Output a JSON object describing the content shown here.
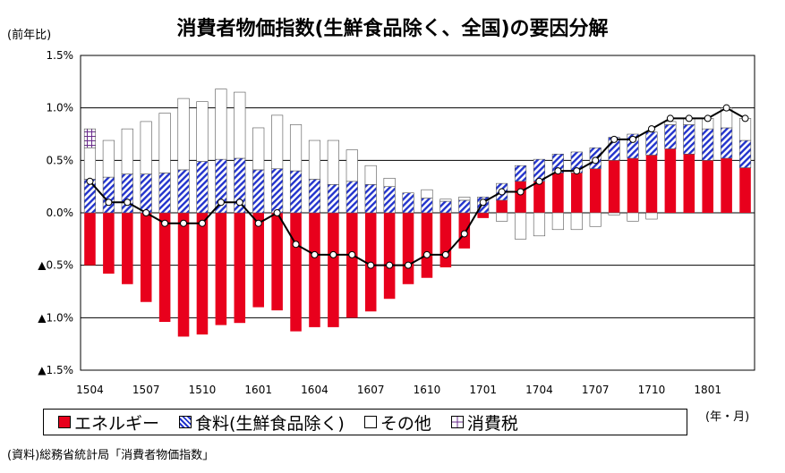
{
  "title": "消費者物価指数(生鮮食品除く、全国)の要因分解",
  "unit_label": "(前年比)",
  "x_unit_label": "(年・月)",
  "source": "(資料)総務省統計局「消費者物価指数」",
  "colors": {
    "energy": "#e8001c",
    "food": "#2233cc",
    "other": "#ffffff",
    "tax": "#6a2c8c",
    "line": "#000000"
  },
  "legend": [
    "エネルギー",
    "食料(生鮮食品除く)",
    "その他",
    "消費税"
  ],
  "chart_data": {
    "type": "bar",
    "ylim": [
      -1.5,
      1.5
    ],
    "yticks": [
      1.5,
      1.0,
      0.5,
      0.0,
      -0.5,
      -1.0,
      -1.5
    ],
    "ytick_labels": [
      "1.5%",
      "1.0%",
      "0.5%",
      "0.0%",
      "▲0.5%",
      "▲1.0%",
      "▲1.5%"
    ],
    "xtick_labels": [
      "1504",
      "1507",
      "1510",
      "1601",
      "1604",
      "1607",
      "1610",
      "1701",
      "1704",
      "1707",
      "1710",
      "1801"
    ],
    "categories": [
      "1504",
      "1505",
      "1506",
      "1507",
      "1508",
      "1509",
      "1510",
      "1511",
      "1512",
      "1601",
      "1602",
      "1603",
      "1604",
      "1605",
      "1606",
      "1607",
      "1608",
      "1609",
      "1610",
      "1611",
      "1612",
      "1701",
      "1702",
      "1703",
      "1704",
      "1705",
      "1706",
      "1707",
      "1708",
      "1709",
      "1710",
      "1711",
      "1712",
      "1801",
      "1802",
      "1803"
    ],
    "series": [
      {
        "name": "エネルギー",
        "values": [
          -0.5,
          -0.58,
          -0.68,
          -0.85,
          -1.04,
          -1.18,
          -1.16,
          -1.07,
          -1.05,
          -0.9,
          -0.93,
          -1.13,
          -1.09,
          -1.09,
          -1.0,
          -0.94,
          -0.82,
          -0.68,
          -0.62,
          -0.52,
          -0.34,
          -0.05,
          0.12,
          0.3,
          0.3,
          0.38,
          0.38,
          0.42,
          0.5,
          0.52,
          0.55,
          0.61,
          0.56,
          0.5,
          0.52,
          0.43
        ]
      },
      {
        "name": "食料(生鮮食品除く)",
        "values": [
          0.32,
          0.34,
          0.37,
          0.37,
          0.38,
          0.41,
          0.49,
          0.51,
          0.52,
          0.41,
          0.42,
          0.4,
          0.32,
          0.27,
          0.3,
          0.27,
          0.25,
          0.19,
          0.14,
          0.11,
          0.12,
          0.15,
          0.16,
          0.15,
          0.21,
          0.18,
          0.2,
          0.2,
          0.22,
          0.23,
          0.22,
          0.23,
          0.28,
          0.3,
          0.29,
          0.26
        ]
      },
      {
        "name": "その他",
        "values": [
          0.3,
          0.35,
          0.43,
          0.5,
          0.57,
          0.68,
          0.57,
          0.67,
          0.63,
          0.4,
          0.51,
          0.44,
          0.37,
          0.42,
          0.3,
          0.18,
          0.08,
          0.0,
          0.08,
          0.02,
          0.03,
          0.0,
          -0.08,
          -0.25,
          -0.22,
          -0.16,
          -0.16,
          -0.13,
          -0.02,
          -0.08,
          -0.06,
          0.03,
          0.06,
          0.1,
          0.19,
          0.21
        ]
      },
      {
        "name": "消費税",
        "values": [
          0.18,
          0.0,
          0.0,
          0.0,
          0.0,
          0.0,
          0.0,
          0.0,
          0.0,
          0.0,
          0.0,
          0.0,
          0.0,
          0.0,
          0.0,
          0.0,
          0.0,
          0.0,
          0.0,
          0.0,
          0.0,
          0.0,
          0.0,
          0.0,
          0.0,
          0.0,
          0.0,
          0.0,
          0.0,
          0.0,
          0.0,
          0.0,
          0.0,
          0.0,
          0.0,
          0.0
        ]
      }
    ],
    "line": {
      "values": [
        0.3,
        0.1,
        0.1,
        0.0,
        -0.1,
        -0.1,
        -0.1,
        0.1,
        0.1,
        -0.1,
        0.0,
        -0.3,
        -0.4,
        -0.4,
        -0.4,
        -0.5,
        -0.5,
        -0.5,
        -0.4,
        -0.4,
        -0.2,
        0.1,
        0.2,
        0.2,
        0.3,
        0.4,
        0.4,
        0.5,
        0.7,
        0.7,
        0.8,
        0.9,
        0.9,
        0.9,
        1.0,
        0.9
      ]
    },
    "grid": true
  }
}
